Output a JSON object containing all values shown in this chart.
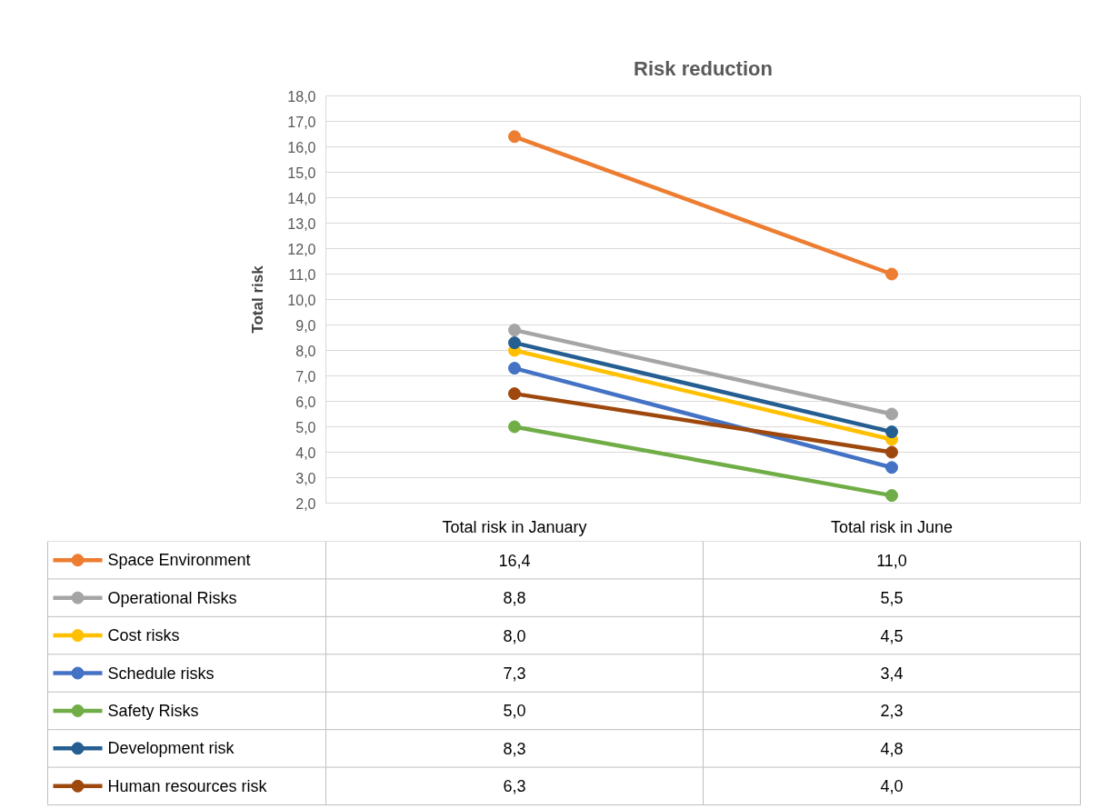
{
  "chart_data": {
    "type": "line",
    "title": "Risk reduction",
    "ylabel": "Total risk",
    "categories": [
      "Total risk in January",
      "Total risk in June"
    ],
    "series": [
      {
        "name": "Space Environment",
        "color": "#ed7d31",
        "values": [
          16.4,
          11.0
        ],
        "value_labels": [
          "16,4",
          "11,0"
        ]
      },
      {
        "name": "Operational Risks",
        "color": "#a5a5a5",
        "values": [
          8.8,
          5.5
        ],
        "value_labels": [
          "8,8",
          "5,5"
        ]
      },
      {
        "name": "Cost risks",
        "color": "#ffc000",
        "values": [
          8.0,
          4.5
        ],
        "value_labels": [
          "8,0",
          "4,5"
        ]
      },
      {
        "name": "Schedule risks",
        "color": "#4472c4",
        "values": [
          7.3,
          3.4
        ],
        "value_labels": [
          "7,3",
          "3,4"
        ]
      },
      {
        "name": "Safety Risks",
        "color": "#70ad47",
        "values": [
          5.0,
          2.3
        ],
        "value_labels": [
          "5,0",
          "2,3"
        ]
      },
      {
        "name": "Development risk",
        "color": "#255e91",
        "values": [
          8.3,
          4.8
        ],
        "value_labels": [
          "8,3",
          "4,8"
        ]
      },
      {
        "name": "Human resources risk",
        "color": "#9e480e",
        "values": [
          6.3,
          4.0
        ],
        "value_labels": [
          "6,3",
          "4,0"
        ]
      }
    ],
    "ylim": [
      2,
      18
    ],
    "yticks": [
      {
        "value": 2,
        "label": "2,0"
      },
      {
        "value": 3,
        "label": "3,0"
      },
      {
        "value": 4,
        "label": "4,0"
      },
      {
        "value": 5,
        "label": "5,0"
      },
      {
        "value": 6,
        "label": "6,0"
      },
      {
        "value": 7,
        "label": "7,0"
      },
      {
        "value": 8,
        "label": "8,0"
      },
      {
        "value": 9,
        "label": "9,0"
      },
      {
        "value": 10,
        "label": "10,0"
      },
      {
        "value": 11,
        "label": "11,0"
      },
      {
        "value": 12,
        "label": "12,0"
      },
      {
        "value": 13,
        "label": "13,0"
      },
      {
        "value": 14,
        "label": "14,0"
      },
      {
        "value": 15,
        "label": "15,0"
      },
      {
        "value": 16,
        "label": "16,0"
      },
      {
        "value": 17,
        "label": "17,0"
      },
      {
        "value": 18,
        "label": "18,0"
      }
    ],
    "grid": "y",
    "legend": "bottom",
    "marker": "circle",
    "line_style": "solid"
  }
}
